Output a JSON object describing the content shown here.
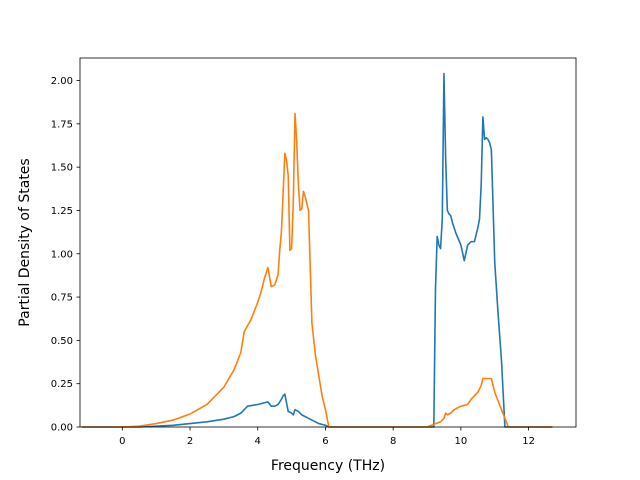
{
  "chart_data": {
    "type": "line",
    "title": "",
    "xlabel": "Frequency (THz)",
    "ylabel": "Partial Density of States",
    "xlim": [
      -1.25,
      13.4
    ],
    "ylim": [
      0.0,
      2.13
    ],
    "xticks": [
      0,
      2,
      4,
      6,
      8,
      10,
      12
    ],
    "xtick_labels": [
      "0",
      "2",
      "4",
      "6",
      "8",
      "10",
      "12"
    ],
    "yticks": [
      0.0,
      0.25,
      0.5,
      0.75,
      1.0,
      1.25,
      1.5,
      1.75,
      2.0
    ],
    "ytick_labels": [
      "0.00",
      "0.25",
      "0.50",
      "0.75",
      "1.00",
      "1.25",
      "1.50",
      "1.75",
      "2.00"
    ],
    "grid": false,
    "legend": "none",
    "series": [
      {
        "color": "#1f77b4",
        "x": [
          -1.2,
          0.0,
          0.5,
          1.0,
          1.5,
          2.0,
          2.5,
          3.0,
          3.3,
          3.5,
          3.7,
          4.0,
          4.2,
          4.3,
          4.4,
          4.5,
          4.6,
          4.7,
          4.75,
          4.8,
          4.9,
          5.0,
          5.05,
          5.1,
          5.2,
          5.3,
          5.4,
          5.5,
          5.6,
          5.8,
          6.0,
          6.1,
          6.3,
          7.0,
          8.0,
          9.0,
          9.2,
          9.25,
          9.3,
          9.35,
          9.4,
          9.45,
          9.5,
          9.55,
          9.6,
          9.65,
          9.7,
          9.75,
          9.8,
          9.85,
          10.0,
          10.1,
          10.2,
          10.3,
          10.4,
          10.5,
          10.55,
          10.6,
          10.65,
          10.7,
          10.75,
          10.8,
          10.85,
          10.9,
          11.0,
          11.1,
          11.2,
          11.3,
          11.4,
          11.5,
          11.55,
          12.0,
          12.7
        ],
        "y": [
          0.0,
          0.0,
          0.0,
          0.005,
          0.01,
          0.02,
          0.03,
          0.045,
          0.06,
          0.08,
          0.12,
          0.13,
          0.14,
          0.145,
          0.12,
          0.12,
          0.13,
          0.16,
          0.18,
          0.19,
          0.09,
          0.08,
          0.07,
          0.1,
          0.09,
          0.07,
          0.06,
          0.05,
          0.04,
          0.02,
          0.01,
          0.0,
          0.0,
          0.0,
          0.0,
          0.0,
          0.0,
          0.8,
          1.1,
          1.05,
          1.03,
          1.2,
          2.04,
          1.55,
          1.25,
          1.23,
          1.22,
          1.18,
          1.15,
          1.12,
          1.05,
          0.96,
          1.05,
          1.07,
          1.07,
          1.15,
          1.2,
          1.4,
          1.79,
          1.66,
          1.67,
          1.66,
          1.64,
          1.6,
          0.95,
          0.65,
          0.38,
          0.0,
          0.0,
          0.0,
          0.0,
          0.0,
          0.0
        ]
      },
      {
        "color": "#ff7f0e",
        "x": [
          -1.2,
          0.0,
          0.5,
          1.0,
          1.5,
          2.0,
          2.5,
          3.0,
          3.3,
          3.5,
          3.6,
          3.8,
          4.0,
          4.1,
          4.2,
          4.3,
          4.4,
          4.5,
          4.6,
          4.65,
          4.7,
          4.75,
          4.8,
          4.85,
          4.9,
          4.95,
          5.0,
          5.05,
          5.1,
          5.15,
          5.2,
          5.25,
          5.3,
          5.35,
          5.4,
          5.5,
          5.6,
          5.7,
          5.8,
          5.9,
          6.0,
          6.1,
          6.3,
          7.0,
          8.0,
          9.0,
          9.4,
          9.5,
          9.55,
          9.6,
          9.7,
          9.8,
          10.0,
          10.2,
          10.3,
          10.4,
          10.5,
          10.6,
          10.65,
          10.7,
          10.8,
          10.9,
          11.0,
          11.1,
          11.2,
          11.3,
          11.4,
          11.5,
          11.55,
          12.0,
          12.7
        ],
        "y": [
          0.0,
          0.0,
          0.005,
          0.02,
          0.04,
          0.075,
          0.13,
          0.23,
          0.33,
          0.43,
          0.55,
          0.62,
          0.72,
          0.78,
          0.86,
          0.92,
          0.81,
          0.82,
          0.88,
          1.02,
          1.13,
          1.35,
          1.58,
          1.54,
          1.45,
          1.02,
          1.03,
          1.3,
          1.81,
          1.65,
          1.4,
          1.25,
          1.26,
          1.36,
          1.33,
          1.25,
          0.6,
          0.42,
          0.3,
          0.18,
          0.1,
          0.0,
          0.0,
          0.0,
          0.0,
          0.0,
          0.03,
          0.05,
          0.08,
          0.07,
          0.08,
          0.1,
          0.12,
          0.13,
          0.16,
          0.18,
          0.2,
          0.24,
          0.28,
          0.28,
          0.28,
          0.28,
          0.2,
          0.15,
          0.1,
          0.05,
          0.0,
          0.0,
          0.0,
          0.0,
          0.0
        ]
      }
    ]
  }
}
